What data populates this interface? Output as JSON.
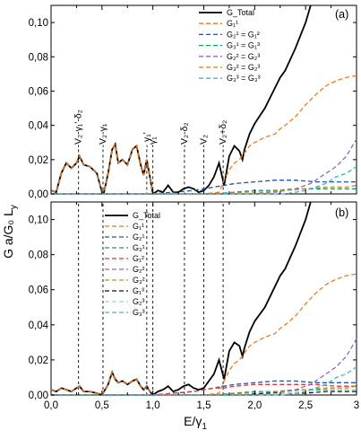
{
  "chart_data": [
    {
      "type": "line",
      "panel_label": "(a)",
      "xlim": [
        0,
        3
      ],
      "ylim": [
        0,
        0.11
      ],
      "x_ticks": [
        "0,00",
        "0,25",
        "0,50",
        "0,75",
        "1,00",
        "1,25",
        "1,50",
        "1,75",
        "2,00",
        "2,25",
        "2,50",
        "2,75",
        "3,00"
      ],
      "x_tick_labels_shown": false,
      "y_ticks": [
        0,
        0.02,
        0.04,
        0.06,
        0.08,
        0.1
      ],
      "y_tick_labels": [
        "0,00",
        "0,02",
        "0,04",
        "0,06",
        "0,08",
        "0,10"
      ],
      "vlines": [
        {
          "x": 0.27,
          "label": "-V₂-γ₁'-δ₂"
        },
        {
          "x": 0.51,
          "label": "-V₂-γ₁"
        },
        {
          "x": 0.94,
          "label": "- γ₁'"
        },
        {
          "x": 1.0,
          "label": "-γ₁"
        },
        {
          "x": 1.31,
          "label": "-V₂-δ₂"
        },
        {
          "x": 1.5,
          "label": "-V₂"
        },
        {
          "x": 1.69,
          "label": "-V₂+δ₂"
        }
      ],
      "legend": [
        "G_Total",
        "G₁¹",
        "G₂¹ = G₁²",
        "G₃¹ = G₁³",
        "G₂² = G₂³",
        "G₃² = G₂³",
        "G₃³ = G₃³"
      ],
      "series": [
        {
          "name": "G_Total",
          "color": "#000000",
          "style": "solid",
          "x": [
            0,
            0.05,
            0.1,
            0.15,
            0.2,
            0.25,
            0.28,
            0.32,
            0.38,
            0.45,
            0.5,
            0.52,
            0.56,
            0.6,
            0.63,
            0.66,
            0.7,
            0.75,
            0.8,
            0.84,
            0.88,
            0.91,
            0.94,
            0.97,
            1.0,
            1.05,
            1.1,
            1.15,
            1.2,
            1.25,
            1.3,
            1.35,
            1.4,
            1.45,
            1.5,
            1.55,
            1.6,
            1.65,
            1.7,
            1.75,
            1.8,
            1.85,
            1.88,
            1.9,
            1.95,
            2.0,
            2.1,
            2.2,
            2.25,
            2.3,
            2.4,
            2.5,
            2.55
          ],
          "y": [
            0.002,
            0.001,
            0.012,
            0.018,
            0.015,
            0.018,
            0.022,
            0.017,
            0.016,
            0.012,
            0.001,
            0.001,
            0.012,
            0.026,
            0.029,
            0.018,
            0.02,
            0.017,
            0.026,
            0.028,
            0.017,
            0.011,
            0.02,
            0.01,
            0.0,
            0.002,
            0.001,
            0.005,
            0.001,
            0.001,
            0.003,
            0.004,
            0.003,
            0.001,
            0.002,
            0.005,
            0.01,
            0.018,
            0.005,
            0.022,
            0.028,
            0.025,
            0.02,
            0.026,
            0.035,
            0.041,
            0.05,
            0.062,
            0.068,
            0.072,
            0.085,
            0.1,
            0.11
          ]
        },
        {
          "name": "G₁¹",
          "color": "#ee7a1d",
          "style": "dash",
          "x": [
            0,
            0.05,
            0.1,
            0.15,
            0.2,
            0.25,
            0.28,
            0.32,
            0.38,
            0.45,
            0.5,
            0.52,
            0.56,
            0.6,
            0.63,
            0.66,
            0.7,
            0.75,
            0.8,
            0.84,
            0.88,
            0.91,
            0.94,
            0.97,
            1.0,
            1.3,
            1.5,
            1.65,
            1.7,
            1.75,
            1.8,
            1.85,
            1.9,
            1.95,
            2.0,
            2.1,
            2.2,
            2.25,
            2.3,
            2.4,
            2.5,
            2.6,
            2.7,
            2.8,
            2.9,
            3.0
          ],
          "y": [
            0.002,
            0.001,
            0.012,
            0.018,
            0.015,
            0.018,
            0.022,
            0.017,
            0.016,
            0.012,
            0.001,
            0.001,
            0.012,
            0.026,
            0.029,
            0.018,
            0.02,
            0.017,
            0.026,
            0.028,
            0.017,
            0.011,
            0.02,
            0.01,
            0.0,
            0.0,
            0.0,
            0.001,
            0.008,
            0.014,
            0.018,
            0.02,
            0.024,
            0.028,
            0.03,
            0.033,
            0.035,
            0.038,
            0.04,
            0.045,
            0.052,
            0.058,
            0.063,
            0.066,
            0.068,
            0.069
          ]
        },
        {
          "name": "G₂¹ = G₁²",
          "color": "#27529a",
          "style": "dash",
          "x": [
            0,
            1.0,
            1.2,
            1.4,
            1.5,
            1.6,
            1.7,
            1.8,
            2.0,
            2.2,
            2.4,
            2.6,
            2.8,
            3.0
          ],
          "y": [
            0,
            0,
            0.001,
            0.002,
            0.003,
            0.004,
            0.005,
            0.006,
            0.007,
            0.008,
            0.008,
            0.007,
            0.007,
            0.007
          ]
        },
        {
          "name": "G₃¹ = G₁³",
          "color": "#199c6f",
          "style": "dash",
          "x": [
            0,
            1.6,
            1.8,
            2.0,
            2.2,
            2.4,
            2.6,
            2.8,
            3.0
          ],
          "y": [
            0,
            0,
            0.001,
            0.002,
            0.002,
            0.003,
            0.003,
            0.003,
            0.003
          ]
        },
        {
          "name": "G₂² = G₂³",
          "color": "#8e68c9",
          "style": "dash",
          "x": [
            0,
            2.0,
            2.2,
            2.4,
            2.55,
            2.7,
            2.8,
            2.9,
            3.0
          ],
          "y": [
            0,
            0,
            0.001,
            0.003,
            0.006,
            0.012,
            0.016,
            0.022,
            0.032
          ]
        },
        {
          "name": "G₃² = G₂³",
          "color": "#c98a1e",
          "style": "dash",
          "x": [
            0,
            1.7,
            1.9,
            2.1,
            2.3,
            2.5,
            2.7,
            2.9,
            3.0
          ],
          "y": [
            0,
            0,
            0.001,
            0.001,
            0.002,
            0.003,
            0.004,
            0.004,
            0.005
          ]
        },
        {
          "name": "G₃³ = G₃³",
          "color": "#3bb6d0",
          "style": "dash",
          "x": [
            0,
            2.3,
            2.5,
            2.7,
            2.8,
            2.9,
            3.0
          ],
          "y": [
            0,
            0,
            0.002,
            0.006,
            0.01,
            0.012,
            0.016
          ]
        }
      ]
    },
    {
      "type": "line",
      "panel_label": "(b)",
      "xlim": [
        0,
        3
      ],
      "ylim": [
        0,
        0.11
      ],
      "x_ticks": [
        "0,00",
        "0,25",
        "0,50",
        "0,75",
        "1,00",
        "1,25",
        "1,50",
        "1,75",
        "2,00",
        "2,25",
        "2,50",
        "2,75",
        "3,00"
      ],
      "x_tick_labels": [
        "0,0",
        "0,5",
        "1,0",
        "1,5",
        "2,0",
        "2,5",
        "3"
      ],
      "y_ticks": [
        0,
        0.02,
        0.04,
        0.06,
        0.08,
        0.1
      ],
      "y_tick_labels": [
        "0,00",
        "0,02",
        "0,04",
        "0,06",
        "0,08",
        "0,10"
      ],
      "vlines": [
        0.27,
        0.51,
        0.94,
        1.0,
        1.31,
        1.5,
        1.69
      ],
      "legend": [
        "G_Total",
        "G₁¹",
        "G₂¹",
        "G₃¹",
        "G₁²",
        "G₂²",
        "G₃²",
        "G₁³",
        "G₂³",
        "G₃³"
      ],
      "series": [
        {
          "name": "G_Total",
          "color": "#000000",
          "style": "solid",
          "x": [
            0,
            0.05,
            0.1,
            0.15,
            0.2,
            0.25,
            0.28,
            0.32,
            0.38,
            0.45,
            0.5,
            0.52,
            0.56,
            0.6,
            0.63,
            0.66,
            0.7,
            0.75,
            0.8,
            0.84,
            0.88,
            0.91,
            0.94,
            0.97,
            1.0,
            1.05,
            1.1,
            1.15,
            1.2,
            1.25,
            1.3,
            1.35,
            1.4,
            1.45,
            1.5,
            1.55,
            1.6,
            1.65,
            1.7,
            1.75,
            1.8,
            1.85,
            1.88,
            1.9,
            1.95,
            2.0,
            2.1,
            2.2,
            2.25,
            2.3,
            2.4,
            2.5,
            2.55
          ],
          "y": [
            0.003,
            0.002,
            0.004,
            0.003,
            0.002,
            0.004,
            0.005,
            0.002,
            0.002,
            0.001,
            0.0,
            0.002,
            0.006,
            0.013,
            0.009,
            0.007,
            0.008,
            0.006,
            0.008,
            0.009,
            0.005,
            0.003,
            0.005,
            0.002,
            0.0,
            0.002,
            0.003,
            0.005,
            0.002,
            0.003,
            0.005,
            0.006,
            0.004,
            0.003,
            0.004,
            0.008,
            0.012,
            0.02,
            0.009,
            0.025,
            0.03,
            0.028,
            0.022,
            0.027,
            0.036,
            0.042,
            0.05,
            0.062,
            0.068,
            0.072,
            0.085,
            0.1,
            0.11
          ]
        },
        {
          "name": "G₁¹",
          "color": "#ee7a1d",
          "style": "dash",
          "x": [
            0,
            0.05,
            0.1,
            0.15,
            0.2,
            0.25,
            0.28,
            0.32,
            0.38,
            0.45,
            0.5,
            0.52,
            0.56,
            0.6,
            0.63,
            0.66,
            0.7,
            0.75,
            0.8,
            0.84,
            0.88,
            0.91,
            0.94,
            0.97,
            1.0,
            1.3,
            1.5,
            1.65,
            1.7,
            1.75,
            1.8,
            1.85,
            1.9,
            1.95,
            2.0,
            2.1,
            2.2,
            2.25,
            2.3,
            2.4,
            2.5,
            2.6,
            2.7,
            2.8,
            2.9,
            3.0
          ],
          "y": [
            0.003,
            0.002,
            0.004,
            0.003,
            0.002,
            0.004,
            0.005,
            0.002,
            0.002,
            0.001,
            0.0,
            0.002,
            0.006,
            0.013,
            0.009,
            0.007,
            0.008,
            0.006,
            0.008,
            0.009,
            0.005,
            0.003,
            0.005,
            0.002,
            0.0,
            0.0,
            0.0,
            0.001,
            0.008,
            0.014,
            0.018,
            0.02,
            0.024,
            0.028,
            0.03,
            0.033,
            0.035,
            0.038,
            0.04,
            0.045,
            0.052,
            0.058,
            0.063,
            0.066,
            0.068,
            0.069
          ]
        },
        {
          "name": "G₂¹",
          "color": "#27529a",
          "style": "dash",
          "x": [
            0,
            1.0,
            1.2,
            1.4,
            1.5,
            1.6,
            1.7,
            1.8,
            2.0,
            2.2,
            2.4,
            2.6,
            2.8,
            3.0
          ],
          "y": [
            0,
            0,
            0.001,
            0.002,
            0.003,
            0.004,
            0.005,
            0.006,
            0.007,
            0.008,
            0.008,
            0.007,
            0.007,
            0.007
          ]
        },
        {
          "name": "G₃¹",
          "color": "#199c6f",
          "style": "dash",
          "x": [
            0,
            1.6,
            1.8,
            2.0,
            2.2,
            2.4,
            2.6,
            2.8,
            3.0
          ],
          "y": [
            0,
            0,
            0.001,
            0.002,
            0.002,
            0.003,
            0.003,
            0.003,
            0.003
          ]
        },
        {
          "name": "G₁²",
          "color": "#d23a3a",
          "style": "dash",
          "x": [
            0,
            1.0,
            1.2,
            1.4,
            1.5,
            1.6,
            1.7,
            1.8,
            2.0,
            2.2,
            2.4,
            2.6,
            2.8,
            3.0
          ],
          "y": [
            0,
            0,
            0.001,
            0.002,
            0.003,
            0.004,
            0.004,
            0.005,
            0.006,
            0.006,
            0.006,
            0.006,
            0.005,
            0.005
          ]
        },
        {
          "name": "G₂²",
          "color": "#8e68c9",
          "style": "dash",
          "x": [
            0,
            2.0,
            2.2,
            2.4,
            2.55,
            2.7,
            2.8,
            2.9,
            3.0
          ],
          "y": [
            0,
            0,
            0.001,
            0.003,
            0.006,
            0.012,
            0.016,
            0.022,
            0.032
          ]
        },
        {
          "name": "G₃²",
          "color": "#c98a1e",
          "style": "dash",
          "x": [
            0,
            1.7,
            1.9,
            2.1,
            2.3,
            2.5,
            2.7,
            2.9,
            3.0
          ],
          "y": [
            0,
            0,
            0.001,
            0.001,
            0.002,
            0.003,
            0.004,
            0.004,
            0.005
          ]
        },
        {
          "name": "G₁³",
          "color": "#111111",
          "style": "dash",
          "x": [
            0,
            1.7,
            1.9,
            2.1,
            2.3,
            2.5,
            2.7,
            2.9,
            3.0
          ],
          "y": [
            0,
            0,
            0.0,
            0.001,
            0.001,
            0.001,
            0.002,
            0.002,
            0.002
          ]
        },
        {
          "name": "G₂³",
          "color": "#a8c8e8",
          "style": "dash",
          "x": [
            0,
            2.0,
            2.3,
            2.6,
            2.8,
            3.0
          ],
          "y": [
            0,
            0,
            0.001,
            0.002,
            0.003,
            0.003
          ]
        },
        {
          "name": "G₃³",
          "color": "#3bb6d0",
          "style": "dash",
          "x": [
            0,
            2.3,
            2.5,
            2.7,
            2.8,
            2.9,
            3.0
          ],
          "y": [
            0,
            0,
            0.002,
            0.006,
            0.01,
            0.012,
            0.016
          ]
        }
      ]
    }
  ],
  "labels": {
    "ylabel": "G a/G₀ L",
    "ylabel_sub": "y",
    "xlabel": "E/γ",
    "xlabel_sub": "1"
  }
}
